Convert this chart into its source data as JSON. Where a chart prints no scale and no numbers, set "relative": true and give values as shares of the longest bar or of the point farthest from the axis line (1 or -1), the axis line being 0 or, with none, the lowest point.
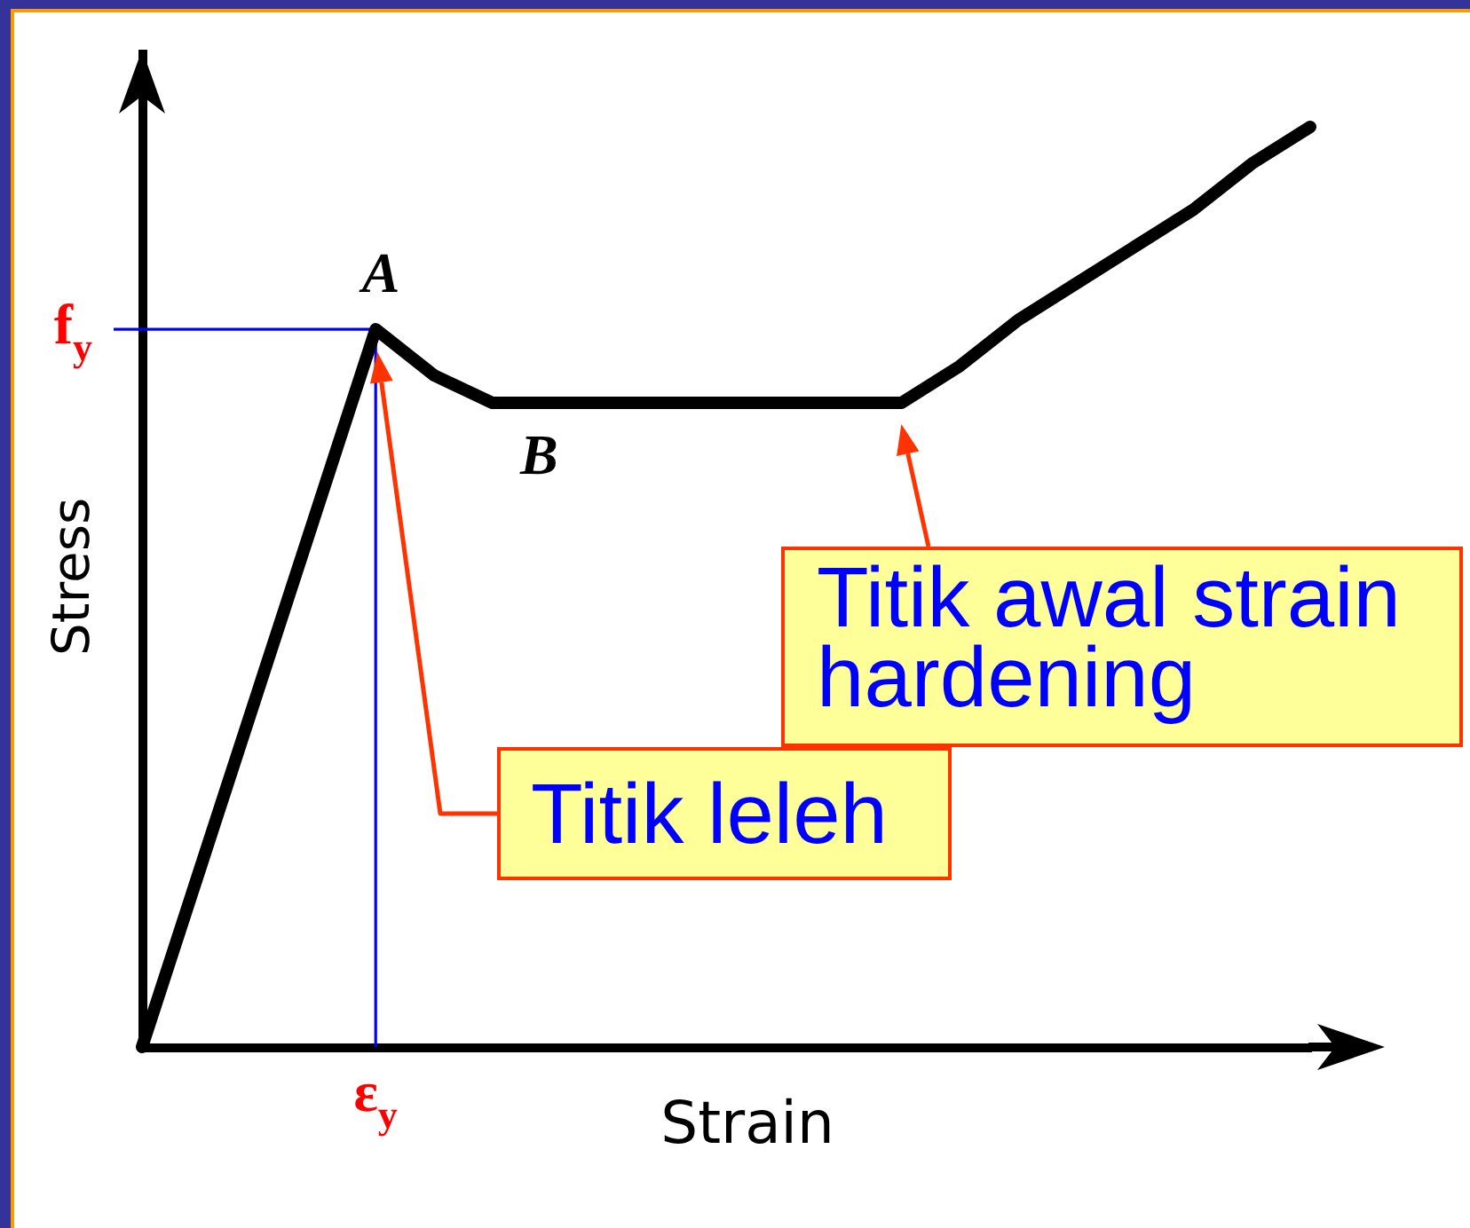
{
  "chart_data": {
    "type": "line",
    "xlabel": "Strain",
    "ylabel": "Stress",
    "relative": true,
    "categories": [
      null,
      null,
      null,
      null,
      null,
      null,
      null,
      null,
      null,
      null,
      null,
      null,
      null,
      null,
      null,
      null,
      null,
      null,
      null,
      null,
      null
    ],
    "values": [
      0,
      0.195,
      0.39,
      0.585,
      0.78,
      0.73,
      0.7,
      0.7,
      0.7,
      0.7,
      0.7,
      0.7,
      0.7,
      0.7,
      0.74,
      0.79,
      0.83,
      0.87,
      0.91,
      0.96,
      1
    ],
    "color": "#000000",
    "ref_lines": [
      {
        "axis": "y",
        "value": 0.78,
        "label": "f$_{y}$",
        "color": "#0000ff"
      },
      {
        "axis": "x",
        "value": "ε$_{y}$",
        "color": "#0000ff"
      }
    ],
    "annotations": [
      {
        "text": "A",
        "y": 0.78
      },
      {
        "text": "B",
        "y": 0.7
      },
      "Titik leleh",
      "Titik awal strain hardening"
    ]
  }
}
